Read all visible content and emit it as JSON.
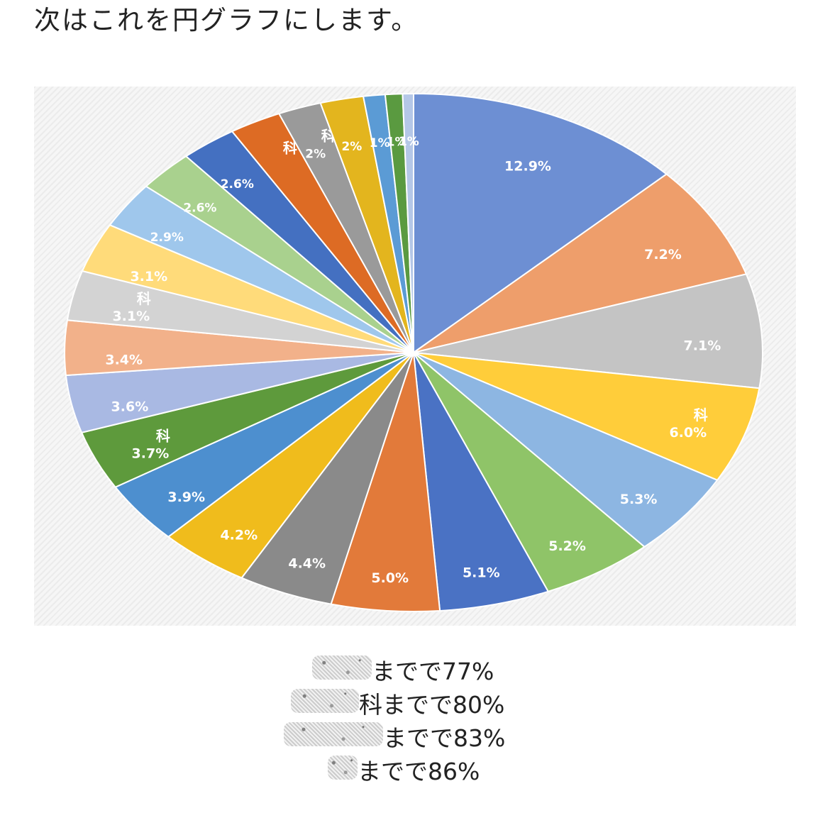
{
  "heading": "次はこれを円グラフにします。",
  "chart_data": {
    "type": "pie",
    "title": "",
    "slices": [
      {
        "label": "",
        "value": 12.9,
        "display": "12.9%",
        "color": "#6d8fd3"
      },
      {
        "label": "",
        "value": 7.2,
        "display": "7.2%",
        "color": "#ee9e6b"
      },
      {
        "label": "",
        "value": 7.1,
        "display": "7.1%",
        "color": "#c4c4c4"
      },
      {
        "label": "科",
        "value": 6.0,
        "display": "6.0%",
        "color": "#ffcd3a"
      },
      {
        "label": "",
        "value": 5.3,
        "display": "5.3%",
        "color": "#8db6e2"
      },
      {
        "label": "",
        "value": 5.2,
        "display": "5.2%",
        "color": "#8fc468"
      },
      {
        "label": "",
        "value": 5.1,
        "display": "5.1%",
        "color": "#4a72c4"
      },
      {
        "label": "",
        "value": 5.0,
        "display": "5.0%",
        "color": "#e27a3a"
      },
      {
        "label": "",
        "value": 4.4,
        "display": "4.4%",
        "color": "#8a8a8a"
      },
      {
        "label": "",
        "value": 4.2,
        "display": "4.2%",
        "color": "#f0bc1c"
      },
      {
        "label": "",
        "value": 3.9,
        "display": "3.9%",
        "color": "#4d8fcf"
      },
      {
        "label": "科",
        "value": 3.7,
        "display": "3.7%",
        "color": "#5e9a3c"
      },
      {
        "label": "",
        "value": 3.6,
        "display": "3.6%",
        "color": "#a9b9e3"
      },
      {
        "label": "",
        "value": 3.4,
        "display": "3.4%",
        "color": "#f2b18a"
      },
      {
        "label": "科",
        "value": 3.1,
        "display": "3.1%",
        "color": "#d3d3d3"
      },
      {
        "label": "",
        "value": 3.1,
        "display": "3.1%",
        "color": "#ffdb7a"
      },
      {
        "label": "",
        "value": 2.9,
        "display": "2.9%",
        "color": "#9fc7ec"
      },
      {
        "label": "",
        "value": 2.6,
        "display": "2.6%",
        "color": "#a9d18e"
      },
      {
        "label": "",
        "value": 2.6,
        "display": "2.6%",
        "color": "#4470c1"
      },
      {
        "label": "科",
        "value": 2.4,
        "display": "",
        "color": "#dd6b24"
      },
      {
        "label": "科",
        "value": 2.0,
        "display": "2%",
        "color": "#9a9a9a"
      },
      {
        "label": "",
        "value": 2.0,
        "display": "2%",
        "color": "#e3b51e"
      },
      {
        "label": "",
        "value": 1.0,
        "display": "1%",
        "color": "#5b9bd5"
      },
      {
        "label": "",
        "value": 0.8,
        "display": "1%",
        "color": "#5a9a40"
      },
      {
        "label": "",
        "value": 0.5,
        "display": "1%",
        "color": "#b4c7e7"
      }
    ]
  },
  "notes": [
    {
      "text": "までで77%"
    },
    {
      "text": "科までで80%"
    },
    {
      "text": "までで83%"
    },
    {
      "text": "までで86%"
    }
  ]
}
